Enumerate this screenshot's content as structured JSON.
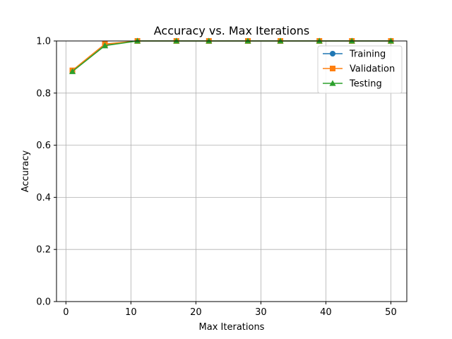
{
  "chart_data": {
    "type": "line",
    "title": "Accuracy vs. Max Iterations",
    "xlabel": "Max Iterations",
    "ylabel": "Accuracy",
    "xlim": [
      -1.45,
      52.45
    ],
    "ylim": [
      0.0,
      1.0
    ],
    "xticks": [
      0,
      10,
      20,
      30,
      40,
      50
    ],
    "yticks": [
      0.0,
      0.2,
      0.4,
      0.6,
      0.8,
      1.0
    ],
    "ytick_labels": [
      "0.0",
      "0.2",
      "0.4",
      "0.6",
      "0.8",
      "1.0"
    ],
    "grid": true,
    "legend_position": "top-right",
    "x": [
      1,
      6,
      11,
      17,
      22,
      28,
      33,
      39,
      44,
      50
    ],
    "series": [
      {
        "name": "Training",
        "color": "#1f77b4",
        "marker": "circle",
        "values": [
          0.885,
          0.985,
          1.0,
          1.0,
          1.0,
          1.0,
          1.0,
          1.0,
          1.0,
          1.0
        ]
      },
      {
        "name": "Validation",
        "color": "#ff7f0e",
        "marker": "square",
        "values": [
          0.887,
          0.988,
          1.0,
          1.0,
          1.0,
          1.0,
          1.0,
          1.0,
          1.0,
          1.0
        ]
      },
      {
        "name": "Testing",
        "color": "#2ca02c",
        "marker": "triangle",
        "values": [
          0.883,
          0.982,
          1.0,
          1.0,
          1.0,
          1.0,
          1.0,
          1.0,
          1.0,
          1.0
        ]
      }
    ]
  }
}
